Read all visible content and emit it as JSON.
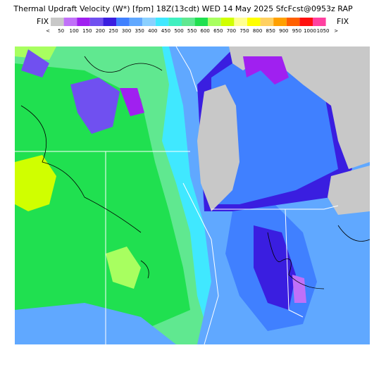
{
  "header": {
    "title": "Thermal Updraft Velocity (W*) [fpm] 18Z(13cdt) WED 14 May 2025 SfcFcst@0953z RAP"
  },
  "legend": {
    "left_label": "FIX",
    "right_label": "FIX",
    "labels": [
      "<",
      "50",
      "100",
      "150",
      "200",
      "250",
      "300",
      "350",
      "400",
      "450",
      "500",
      "550",
      "600",
      "650",
      "700",
      "750",
      "800",
      "850",
      "900",
      "950",
      "1000",
      "1050",
      ">"
    ],
    "colors": [
      "#c8c8c8",
      "#c070f8",
      "#a020f0",
      "#7050f0",
      "#3a1ee0",
      "#4080ff",
      "#60a8ff",
      "#8ad0ff",
      "#40e8ff",
      "#40f0c0",
      "#60e890",
      "#20e050",
      "#a8ff60",
      "#d0ff00",
      "#ffff90",
      "#ffff00",
      "#ffd060",
      "#ffa000",
      "#ff6000",
      "#ff1010",
      "#ff40a0"
    ]
  }
}
